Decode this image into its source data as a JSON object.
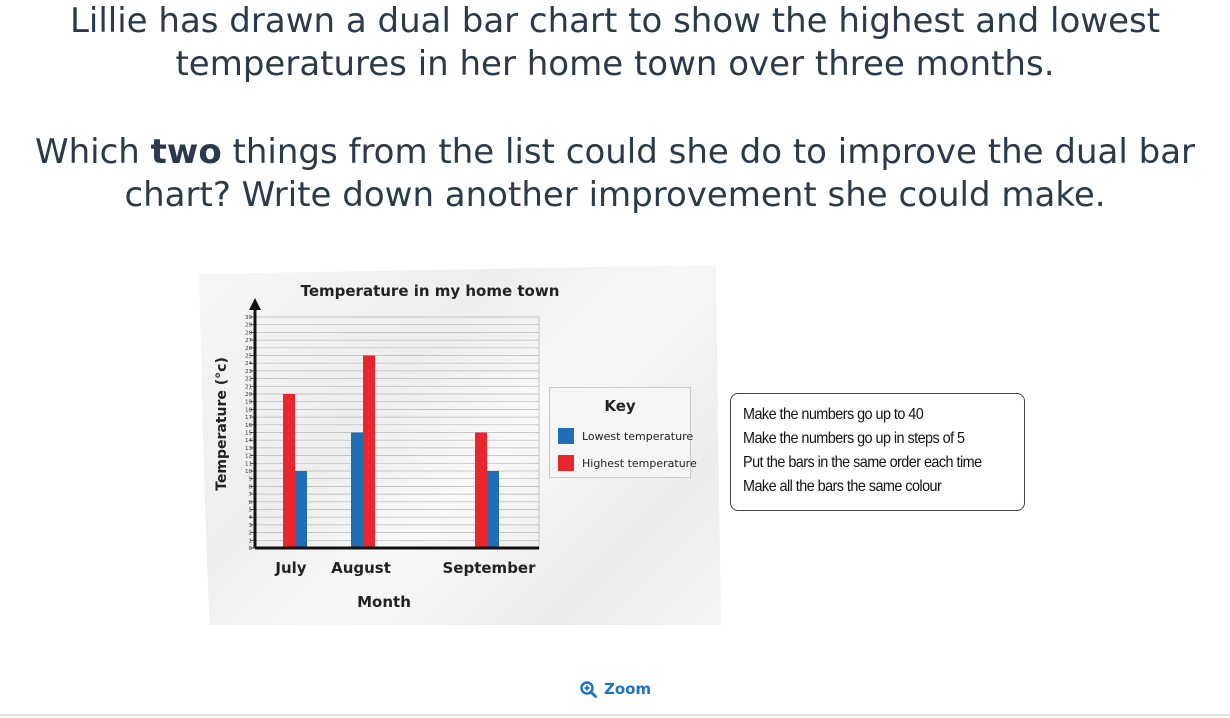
{
  "question": {
    "line1": "Lillie has drawn a dual bar chart to show the highest and lowest temperatures in her home town over three months.",
    "line2_pre": "Which ",
    "line2_bold": "two",
    "line2_post": " things from the list could she do to improve the dual bar chart? Write down another improvement she could make."
  },
  "options": [
    "Make the numbers go up to 40",
    "Make the numbers go up in steps of 5",
    "Put the bars in the same order each time",
    "Make all the bars the same colour"
  ],
  "zoom": {
    "label": "Zoom",
    "icon": "zoom-in-icon"
  },
  "key": {
    "title": "Key",
    "items": [
      {
        "label": "Lowest temperature",
        "color": "#1f6db5"
      },
      {
        "label": "Highest temperature",
        "color": "#e8262b"
      }
    ]
  },
  "chart_data": {
    "type": "bar",
    "title": "Temperature in my home town",
    "xlabel": "Month",
    "ylabel": "Temperature (°c)",
    "ylim": [
      0,
      30
    ],
    "ytick_step": 1,
    "grid": true,
    "legend": "right",
    "categories": [
      "July",
      "August",
      "September"
    ],
    "series": [
      {
        "name": "Lowest temperature",
        "color": "#1f6db5",
        "values": [
          10,
          15,
          10
        ]
      },
      {
        "name": "Highest temperature",
        "color": "#e8262b",
        "values": [
          20,
          25,
          15
        ]
      }
    ],
    "bar_order": [
      [
        "Highest temperature",
        "Lowest temperature"
      ],
      [
        "Lowest temperature",
        "Highest temperature"
      ],
      [
        "Highest temperature",
        "Lowest temperature"
      ]
    ]
  }
}
